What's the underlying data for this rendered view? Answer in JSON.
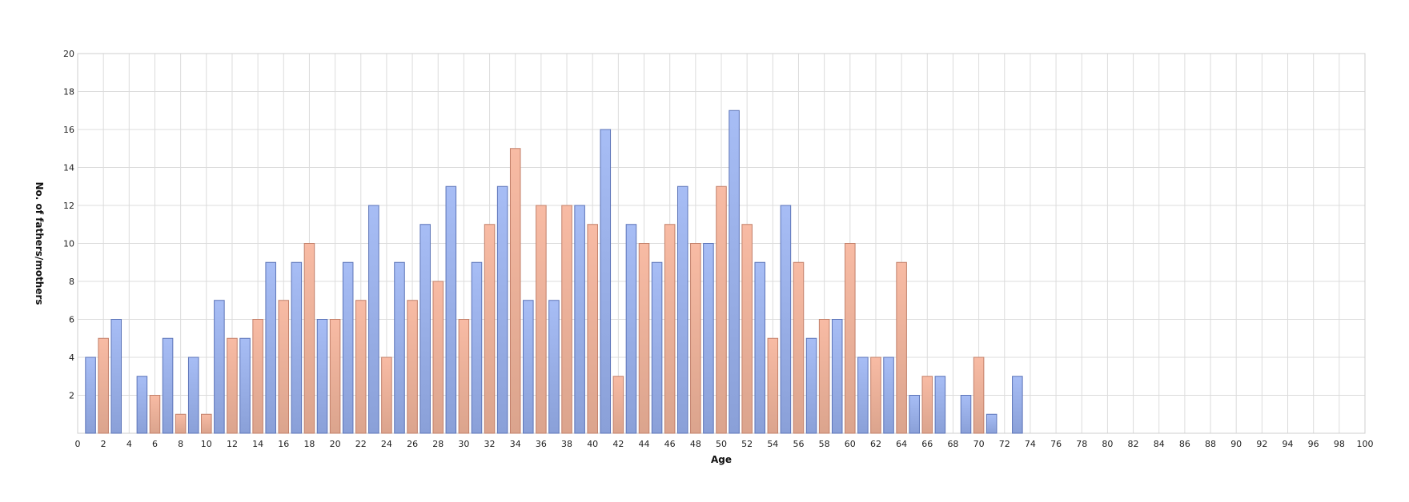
{
  "chart_data": {
    "type": "bar",
    "xlabel": "Age",
    "ylabel": "No. of fathers/mothers",
    "xlim": [
      0,
      100
    ],
    "ylim": [
      0,
      20
    ],
    "x_tick_step": 2,
    "y_tick_step": 2,
    "grid": true,
    "legend": "none",
    "series": [
      {
        "color": "#a7bdf5",
        "x": [
          1,
          3,
          5,
          7,
          9,
          11,
          13,
          15,
          17,
          19,
          21,
          23,
          25,
          27,
          29,
          31,
          33,
          35,
          37,
          39,
          41,
          43,
          45,
          47,
          49,
          51,
          53,
          55,
          57,
          59,
          61,
          63,
          65,
          67,
          69,
          71,
          73
        ],
        "values": [
          4,
          6,
          3,
          5,
          4,
          7,
          5,
          9,
          9,
          6,
          9,
          12,
          9,
          11,
          13,
          9,
          13,
          7,
          7,
          12,
          16,
          11,
          9,
          13,
          10,
          17,
          9,
          12,
          5,
          6,
          4,
          4,
          2,
          3,
          2,
          1,
          3
        ]
      },
      {
        "color": "#f8bba4",
        "x": [
          2,
          6,
          8,
          10,
          12,
          14,
          16,
          18,
          20,
          22,
          24,
          26,
          28,
          30,
          32,
          34,
          36,
          38,
          40,
          42,
          44,
          46,
          48,
          50,
          52,
          54,
          56,
          58,
          60,
          62,
          64,
          66,
          70
        ],
        "values": [
          5,
          2,
          1,
          1,
          5,
          6,
          7,
          10,
          6,
          7,
          4,
          7,
          8,
          6,
          11,
          15,
          12,
          12,
          11,
          3,
          10,
          11,
          10,
          13,
          11,
          5,
          9,
          6,
          10,
          4,
          9,
          3,
          4
        ]
      }
    ]
  }
}
